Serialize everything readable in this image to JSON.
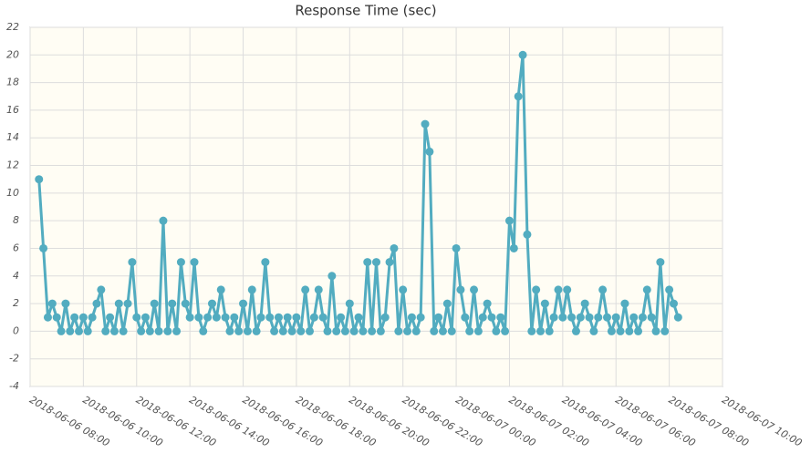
{
  "chart_data": {
    "type": "line",
    "title": "Response Time (sec)",
    "x": [
      "2018-06-06 08:20",
      "2018-06-06 08:30",
      "2018-06-06 08:40",
      "2018-06-06 08:50",
      "2018-06-06 09:00",
      "2018-06-06 09:10",
      "2018-06-06 09:20",
      "2018-06-06 09:30",
      "2018-06-06 09:40",
      "2018-06-06 09:50",
      "2018-06-06 10:00",
      "2018-06-06 10:10",
      "2018-06-06 10:20",
      "2018-06-06 10:30",
      "2018-06-06 10:40",
      "2018-06-06 10:50",
      "2018-06-06 11:00",
      "2018-06-06 11:10",
      "2018-06-06 11:20",
      "2018-06-06 11:30",
      "2018-06-06 11:40",
      "2018-06-06 11:50",
      "2018-06-06 12:00",
      "2018-06-06 12:10",
      "2018-06-06 12:20",
      "2018-06-06 12:30",
      "2018-06-06 12:40",
      "2018-06-06 12:50",
      "2018-06-06 13:00",
      "2018-06-06 13:10",
      "2018-06-06 13:20",
      "2018-06-06 13:30",
      "2018-06-06 13:40",
      "2018-06-06 13:50",
      "2018-06-06 14:00",
      "2018-06-06 14:10",
      "2018-06-06 14:20",
      "2018-06-06 14:30",
      "2018-06-06 14:40",
      "2018-06-06 14:50",
      "2018-06-06 15:00",
      "2018-06-06 15:10",
      "2018-06-06 15:20",
      "2018-06-06 15:30",
      "2018-06-06 15:40",
      "2018-06-06 15:50",
      "2018-06-06 16:00",
      "2018-06-06 16:10",
      "2018-06-06 16:20",
      "2018-06-06 16:30",
      "2018-06-06 16:40",
      "2018-06-06 16:50",
      "2018-06-06 17:00",
      "2018-06-06 17:10",
      "2018-06-06 17:20",
      "2018-06-06 17:30",
      "2018-06-06 17:40",
      "2018-06-06 17:50",
      "2018-06-06 18:00",
      "2018-06-06 18:10",
      "2018-06-06 18:20",
      "2018-06-06 18:30",
      "2018-06-06 18:40",
      "2018-06-06 18:50",
      "2018-06-06 19:00",
      "2018-06-06 19:10",
      "2018-06-06 19:20",
      "2018-06-06 19:30",
      "2018-06-06 19:40",
      "2018-06-06 19:50",
      "2018-06-06 20:00",
      "2018-06-06 20:10",
      "2018-06-06 20:20",
      "2018-06-06 20:30",
      "2018-06-06 20:40",
      "2018-06-06 20:50",
      "2018-06-06 21:00",
      "2018-06-06 21:10",
      "2018-06-06 21:20",
      "2018-06-06 21:30",
      "2018-06-06 21:40",
      "2018-06-06 21:50",
      "2018-06-06 22:00",
      "2018-06-06 22:10",
      "2018-06-06 22:20",
      "2018-06-06 22:30",
      "2018-06-06 22:40",
      "2018-06-06 22:50",
      "2018-06-06 23:00",
      "2018-06-06 23:10",
      "2018-06-06 23:20",
      "2018-06-06 23:30",
      "2018-06-06 23:40",
      "2018-06-06 23:50",
      "2018-06-07 00:00",
      "2018-06-07 00:10",
      "2018-06-07 00:20",
      "2018-06-07 00:30",
      "2018-06-07 00:40",
      "2018-06-07 00:50",
      "2018-06-07 01:00",
      "2018-06-07 01:10",
      "2018-06-07 01:20",
      "2018-06-07 01:30",
      "2018-06-07 01:40",
      "2018-06-07 01:50",
      "2018-06-07 02:00",
      "2018-06-07 02:10",
      "2018-06-07 02:20",
      "2018-06-07 02:30",
      "2018-06-07 02:40",
      "2018-06-07 02:50",
      "2018-06-07 03:00",
      "2018-06-07 03:10",
      "2018-06-07 03:20",
      "2018-06-07 03:30",
      "2018-06-07 03:40",
      "2018-06-07 03:50",
      "2018-06-07 04:00",
      "2018-06-07 04:10",
      "2018-06-07 04:20",
      "2018-06-07 04:30",
      "2018-06-07 04:40",
      "2018-06-07 04:50",
      "2018-06-07 05:00",
      "2018-06-07 05:10",
      "2018-06-07 05:20",
      "2018-06-07 05:30",
      "2018-06-07 05:40",
      "2018-06-07 05:50",
      "2018-06-07 06:00",
      "2018-06-07 06:10",
      "2018-06-07 06:20",
      "2018-06-07 06:30",
      "2018-06-07 06:40",
      "2018-06-07 06:50",
      "2018-06-07 07:00",
      "2018-06-07 07:10",
      "2018-06-07 07:20",
      "2018-06-07 07:30",
      "2018-06-07 07:40",
      "2018-06-07 07:50",
      "2018-06-07 08:00",
      "2018-06-07 08:10",
      "2018-06-07 08:20"
    ],
    "series": [
      {
        "color": "#52acc0",
        "values": [
          11,
          6,
          1,
          2,
          1,
          0,
          2,
          0,
          1,
          0,
          1,
          0,
          1,
          2,
          3,
          0,
          1,
          0,
          2,
          0,
          2,
          5,
          1,
          0,
          1,
          0,
          2,
          0,
          8,
          0,
          2,
          0,
          5,
          2,
          1,
          5,
          1,
          0,
          1,
          2,
          1,
          3,
          1,
          0,
          1,
          0,
          2,
          0,
          3,
          0,
          1,
          5,
          1,
          0,
          1,
          0,
          1,
          0,
          1,
          0,
          3,
          0,
          1,
          3,
          1,
          0,
          4,
          0,
          1,
          0,
          2,
          0,
          1,
          0,
          5,
          0,
          5,
          0,
          1,
          5,
          6,
          0,
          3,
          0,
          1,
          0,
          1,
          15,
          13,
          0,
          1,
          0,
          2,
          0,
          6,
          3,
          1,
          0,
          3,
          0,
          1,
          2,
          1,
          0,
          1,
          0,
          8,
          6,
          17,
          20,
          7,
          0,
          3,
          0,
          2,
          0,
          1,
          3,
          1,
          3,
          1,
          0,
          1,
          2,
          1,
          0,
          1,
          3,
          1,
          0,
          1,
          0,
          2,
          0,
          1,
          0,
          1,
          3,
          1,
          0,
          5,
          0,
          3,
          2,
          1
        ]
      }
    ],
    "xlim": [
      "2018-06-06 08:00",
      "2018-06-07 10:00"
    ],
    "xticks": [
      "2018-06-06 08:00",
      "2018-06-06 10:00",
      "2018-06-06 12:00",
      "2018-06-06 14:00",
      "2018-06-06 16:00",
      "2018-06-06 18:00",
      "2018-06-06 20:00",
      "2018-06-06 22:00",
      "2018-06-07 00:00",
      "2018-06-07 02:00",
      "2018-06-07 04:00",
      "2018-06-07 06:00",
      "2018-06-07 08:00",
      "2018-06-07 10:00"
    ],
    "ylim": [
      -4,
      22
    ],
    "yticks": [
      -4,
      -2,
      0,
      2,
      4,
      6,
      8,
      10,
      12,
      14,
      16,
      18,
      20,
      22
    ],
    "grid": true
  }
}
